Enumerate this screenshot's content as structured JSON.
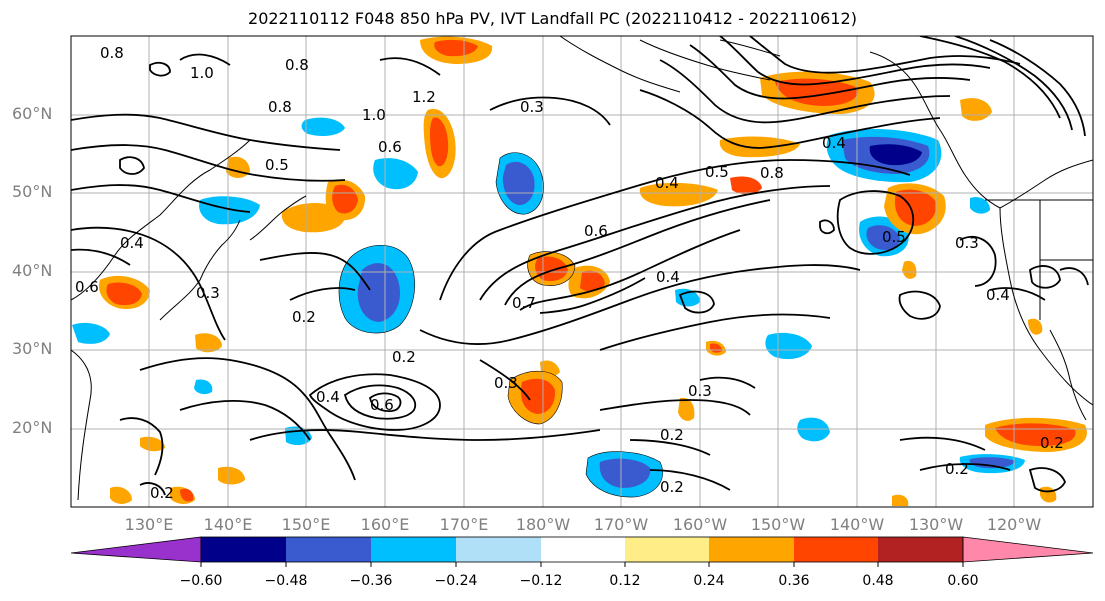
{
  "title": "2022110112 F048 850 hPa PV, IVT Landfall PC (2022110412 - 2022110612)",
  "map": {
    "region": "North Pacific",
    "lat_labels": [
      "60°N",
      "50°N",
      "40°N",
      "30°N",
      "20°N"
    ],
    "lon_labels": [
      "130°E",
      "140°E",
      "150°E",
      "160°E",
      "170°E",
      "180°W",
      "170°W",
      "160°W",
      "150°W",
      "140°W",
      "130°W",
      "120°W"
    ],
    "contour_labels": [
      "0.8",
      "1.0",
      "0.8",
      "0.8",
      "1.0",
      "1.2",
      "0.6",
      "0.5",
      "0.3",
      "0.4",
      "0.5",
      "0.8",
      "0.4",
      "0.6",
      "0.4",
      "0.7",
      "0.3",
      "0.2",
      "0.2",
      "0.4",
      "0.6",
      "0.3",
      "0.3",
      "0.2",
      "0.2",
      "0.2",
      "0.4",
      "0.3",
      "0.5",
      "0.2",
      "0.2",
      "0.6",
      "0.4"
    ],
    "colors": {
      "neg_060": "#9932cc",
      "neg_048": "#00008b",
      "neg_036": "#3a5bcf",
      "neg_024": "#00bfff",
      "neg_012": "#b0e0f8",
      "pos_012": "#ffee88",
      "pos_024": "#ffa500",
      "pos_036": "#ff4500",
      "pos_048": "#b22222",
      "pos_060": "#ff88aa"
    }
  },
  "colorbar": {
    "ticks": [
      "−0.60",
      "−0.48",
      "−0.36",
      "−0.24",
      "−0.12",
      "0.12",
      "0.24",
      "0.36",
      "0.48",
      "0.60"
    ],
    "colors": [
      "#9932cc",
      "#00008b",
      "#3a5bcf",
      "#00bfff",
      "#b0e0f8",
      "#ffffff",
      "#ffee88",
      "#ffa500",
      "#ff4500",
      "#b22222",
      "#ff88aa"
    ]
  }
}
